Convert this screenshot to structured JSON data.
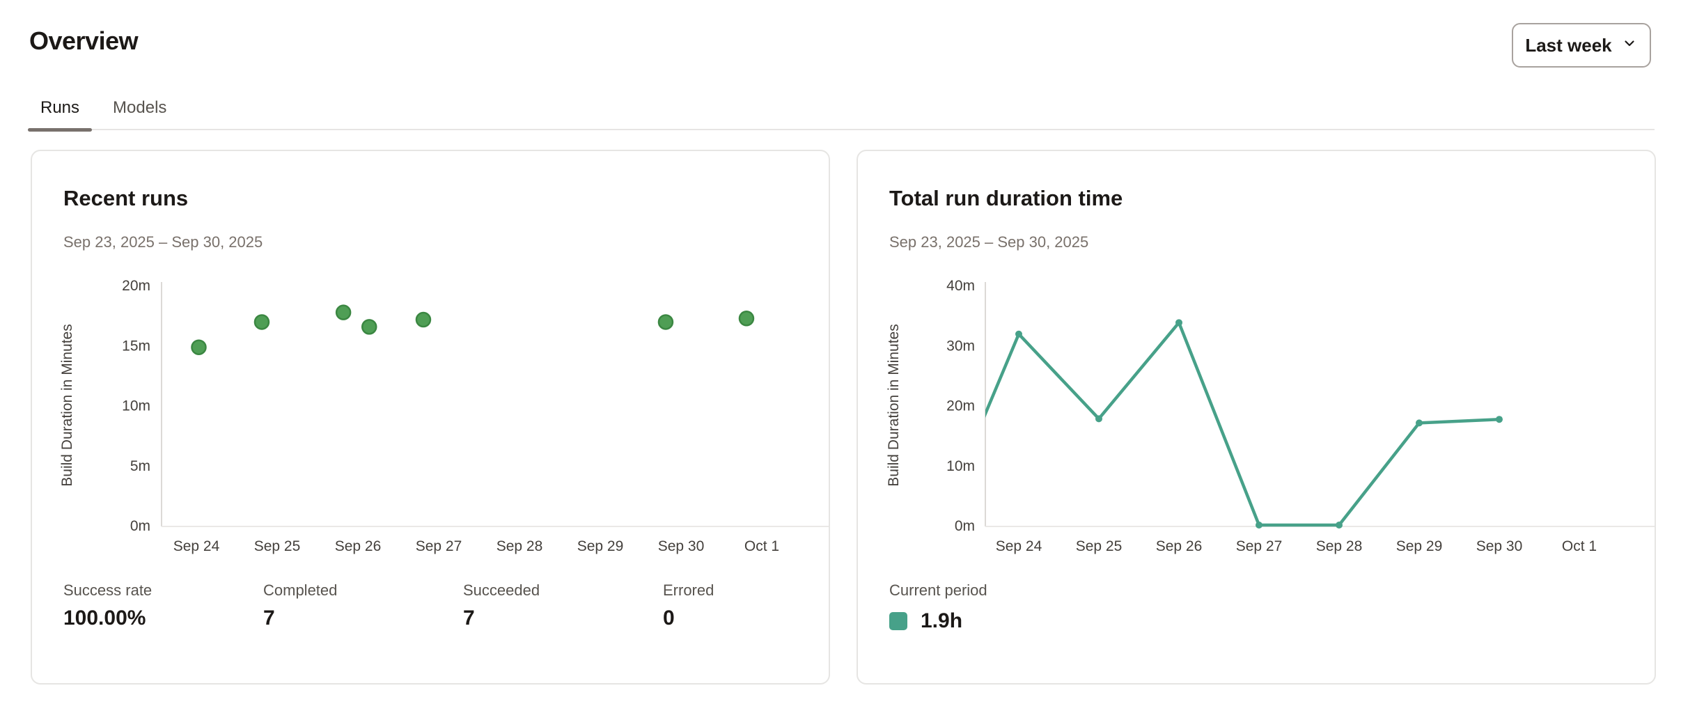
{
  "header": {
    "title": "Overview",
    "tabs": [
      {
        "label": "Runs",
        "active": true
      },
      {
        "label": "Models",
        "active": false
      }
    ],
    "period_selector": {
      "label": "Last week",
      "icon": "chevron-down"
    }
  },
  "cards": [
    {
      "title": "Recent runs",
      "date_range": "Sep 23, 2025 – Sep 30, 2025",
      "stats": [
        {
          "label": "Success rate",
          "value": "100.00%"
        },
        {
          "label": "Completed",
          "value": "7"
        },
        {
          "label": "Succeeded",
          "value": "7"
        },
        {
          "label": "Errored",
          "value": "0"
        }
      ]
    },
    {
      "title": "Total run duration time",
      "date_range": "Sep 23, 2025 – Sep 30, 2025",
      "legend": {
        "label": "Current period",
        "value": "1.9h",
        "swatch_color": "#47a189"
      }
    }
  ],
  "chart_data": [
    {
      "type": "scatter",
      "title": "Recent runs",
      "ylabel": "Build Duration in Minutes",
      "ylim": [
        0,
        20
      ],
      "y_ticks": [
        "0m",
        "5m",
        "10m",
        "15m",
        "20m"
      ],
      "x_labels": [
        "Sep 24",
        "Sep 25",
        "Sep 26",
        "Sep 27",
        "Sep 28",
        "Sep 29",
        "Sep 30",
        "Oct 1"
      ],
      "point_color": "#4f9e55",
      "point_stroke": "#3b8742",
      "points": [
        {
          "day_offset": 0.03,
          "minutes": 14.8
        },
        {
          "day_offset": 0.81,
          "minutes": 16.9
        },
        {
          "day_offset": 1.82,
          "minutes": 17.7
        },
        {
          "day_offset": 2.14,
          "minutes": 16.5
        },
        {
          "day_offset": 2.81,
          "minutes": 17.1
        },
        {
          "day_offset": 5.81,
          "minutes": 16.9
        },
        {
          "day_offset": 6.81,
          "minutes": 17.2
        }
      ],
      "grid": false,
      "legend_position": "none"
    },
    {
      "type": "line",
      "title": "Total run duration time",
      "ylabel": "Build Duration in Minutes",
      "ylim": [
        0,
        40
      ],
      "y_ticks": [
        "0m",
        "10m",
        "20m",
        "30m",
        "40m"
      ],
      "x_labels": [
        "Sep 24",
        "Sep 25",
        "Sep 26",
        "Sep 27",
        "Sep 28",
        "Sep 29",
        "Sep 30",
        "Oct 1"
      ],
      "series": [
        {
          "name": "Current period",
          "color": "#47a189",
          "points": [
            {
              "day_offset": -1,
              "minutes": 0
            },
            {
              "day_offset": 0,
              "minutes": 31.8
            },
            {
              "day_offset": 1,
              "minutes": 17.7
            },
            {
              "day_offset": 2,
              "minutes": 33.7
            },
            {
              "day_offset": 3,
              "minutes": 0
            },
            {
              "day_offset": 4,
              "minutes": 0
            },
            {
              "day_offset": 5,
              "minutes": 17.0
            },
            {
              "day_offset": 6,
              "minutes": 17.6
            }
          ]
        }
      ],
      "total_label": "1.9h",
      "grid": false,
      "legend_position": "bottom-left"
    }
  ]
}
